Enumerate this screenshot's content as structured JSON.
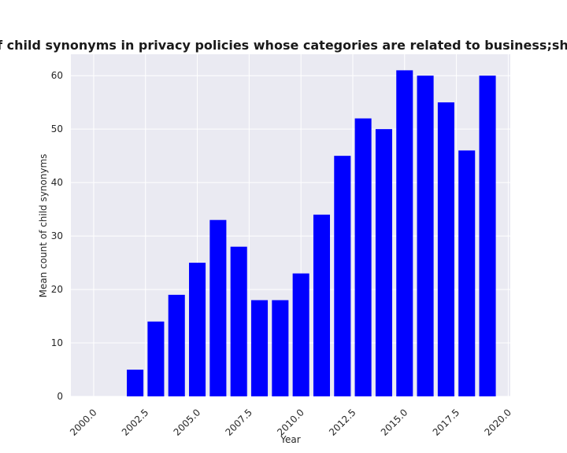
{
  "chart_data": {
    "type": "bar",
    "title": "Mean count of child synonyms in privacy policies whose categories are related to business;shopping;vehicles",
    "xlabel": "Year",
    "ylabel": "Mean count of child synonyms",
    "x": [
      2000,
      2001,
      2002,
      2003,
      2004,
      2005,
      2006,
      2007,
      2008,
      2009,
      2010,
      2011,
      2012,
      2013,
      2014,
      2015,
      2016,
      2017,
      2018,
      2019
    ],
    "values": [
      0,
      0,
      5,
      14,
      19,
      25,
      33,
      28,
      18,
      18,
      23,
      34,
      45,
      52,
      50,
      61,
      60,
      55,
      46,
      60
    ],
    "xticks": [
      "2000.0",
      "2002.5",
      "2005.0",
      "2007.5",
      "2010.0",
      "2012.5",
      "2015.0",
      "2017.5",
      "2020.0"
    ],
    "yticks": [
      "0",
      "10",
      "20",
      "30",
      "40",
      "50",
      "60"
    ],
    "xlim": [
      1998.9,
      2020.1
    ],
    "ylim": [
      0,
      64
    ],
    "bar_color": "#0000ff",
    "background_color": "#eaeaf2",
    "grid": true
  }
}
